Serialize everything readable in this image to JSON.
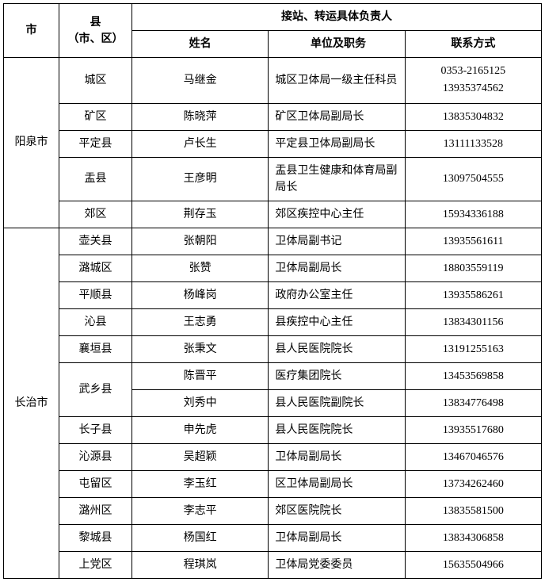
{
  "headers": {
    "city": "市",
    "county": "县\n（市、区）",
    "group": "接站、转运具体负责人",
    "name": "姓名",
    "position": "单位及职务",
    "contact": "联系方式"
  },
  "cities": [
    {
      "city": "阳泉市",
      "rows": [
        {
          "county": "城区",
          "countyRowspan": 1,
          "name": "马继金",
          "position": "城区卫体局一级主任科员",
          "contact": [
            "0353-2165125",
            "13935374562"
          ]
        },
        {
          "county": "矿区",
          "countyRowspan": 1,
          "name": "陈晓萍",
          "position": "矿区卫体局副局长",
          "contact": [
            "13835304832"
          ]
        },
        {
          "county": "平定县",
          "countyRowspan": 1,
          "name": "卢长生",
          "position": "平定县卫体局副局长",
          "contact": [
            "13111133528"
          ]
        },
        {
          "county": "盂县",
          "countyRowspan": 1,
          "name": "王彦明",
          "position": "盂县卫生健康和体育局副局长",
          "contact": [
            "13097504555"
          ]
        },
        {
          "county": "郊区",
          "countyRowspan": 1,
          "name": "荆存玉",
          "position": "郊区疾控中心主任",
          "contact": [
            "15934336188"
          ]
        }
      ]
    },
    {
      "city": "长治市",
      "rows": [
        {
          "county": "壶关县",
          "countyRowspan": 1,
          "name": "张朝阳",
          "position": "卫体局副书记",
          "contact": [
            "13935561611"
          ]
        },
        {
          "county": "潞城区",
          "countyRowspan": 1,
          "name": "张赞",
          "position": "卫体局副局长",
          "contact": [
            "18803559119"
          ]
        },
        {
          "county": "平顺县",
          "countyRowspan": 1,
          "name": "杨峰岗",
          "position": "政府办公室主任",
          "contact": [
            "13935586261"
          ]
        },
        {
          "county": "沁县",
          "countyRowspan": 1,
          "name": "王志勇",
          "position": "县疾控中心主任",
          "contact": [
            "13834301156"
          ]
        },
        {
          "county": "襄垣县",
          "countyRowspan": 1,
          "name": "张秉文",
          "position": "县人民医院院长",
          "contact": [
            "13191255163"
          ]
        },
        {
          "county": "武乡县",
          "countyRowspan": 2,
          "name": "陈晋平",
          "position": "医疗集团院长",
          "contact": [
            "13453569858"
          ]
        },
        {
          "county": null,
          "countyRowspan": 0,
          "name": "刘秀中",
          "position": "县人民医院副院长",
          "contact": [
            "13834776498"
          ]
        },
        {
          "county": "长子县",
          "countyRowspan": 1,
          "name": "申先虎",
          "position": "县人民医院院长",
          "contact": [
            "13935517680"
          ]
        },
        {
          "county": "沁源县",
          "countyRowspan": 1,
          "name": "吴超颖",
          "position": "卫体局副局长",
          "contact": [
            "13467046576"
          ]
        },
        {
          "county": "屯留区",
          "countyRowspan": 1,
          "name": "李玉红",
          "position": "区卫体局副局长",
          "contact": [
            "13734262460"
          ]
        },
        {
          "county": "潞州区",
          "countyRowspan": 1,
          "name": "李志平",
          "position": "郊区医院院长",
          "contact": [
            "13835581500"
          ]
        },
        {
          "county": "黎城县",
          "countyRowspan": 1,
          "name": "杨国红",
          "position": "卫体局副局长",
          "contact": [
            "13834306858"
          ]
        },
        {
          "county": "上党区",
          "countyRowspan": 1,
          "name": "程琪岚",
          "position": "卫体局党委委员",
          "contact": [
            "15635504966"
          ]
        }
      ]
    }
  ]
}
